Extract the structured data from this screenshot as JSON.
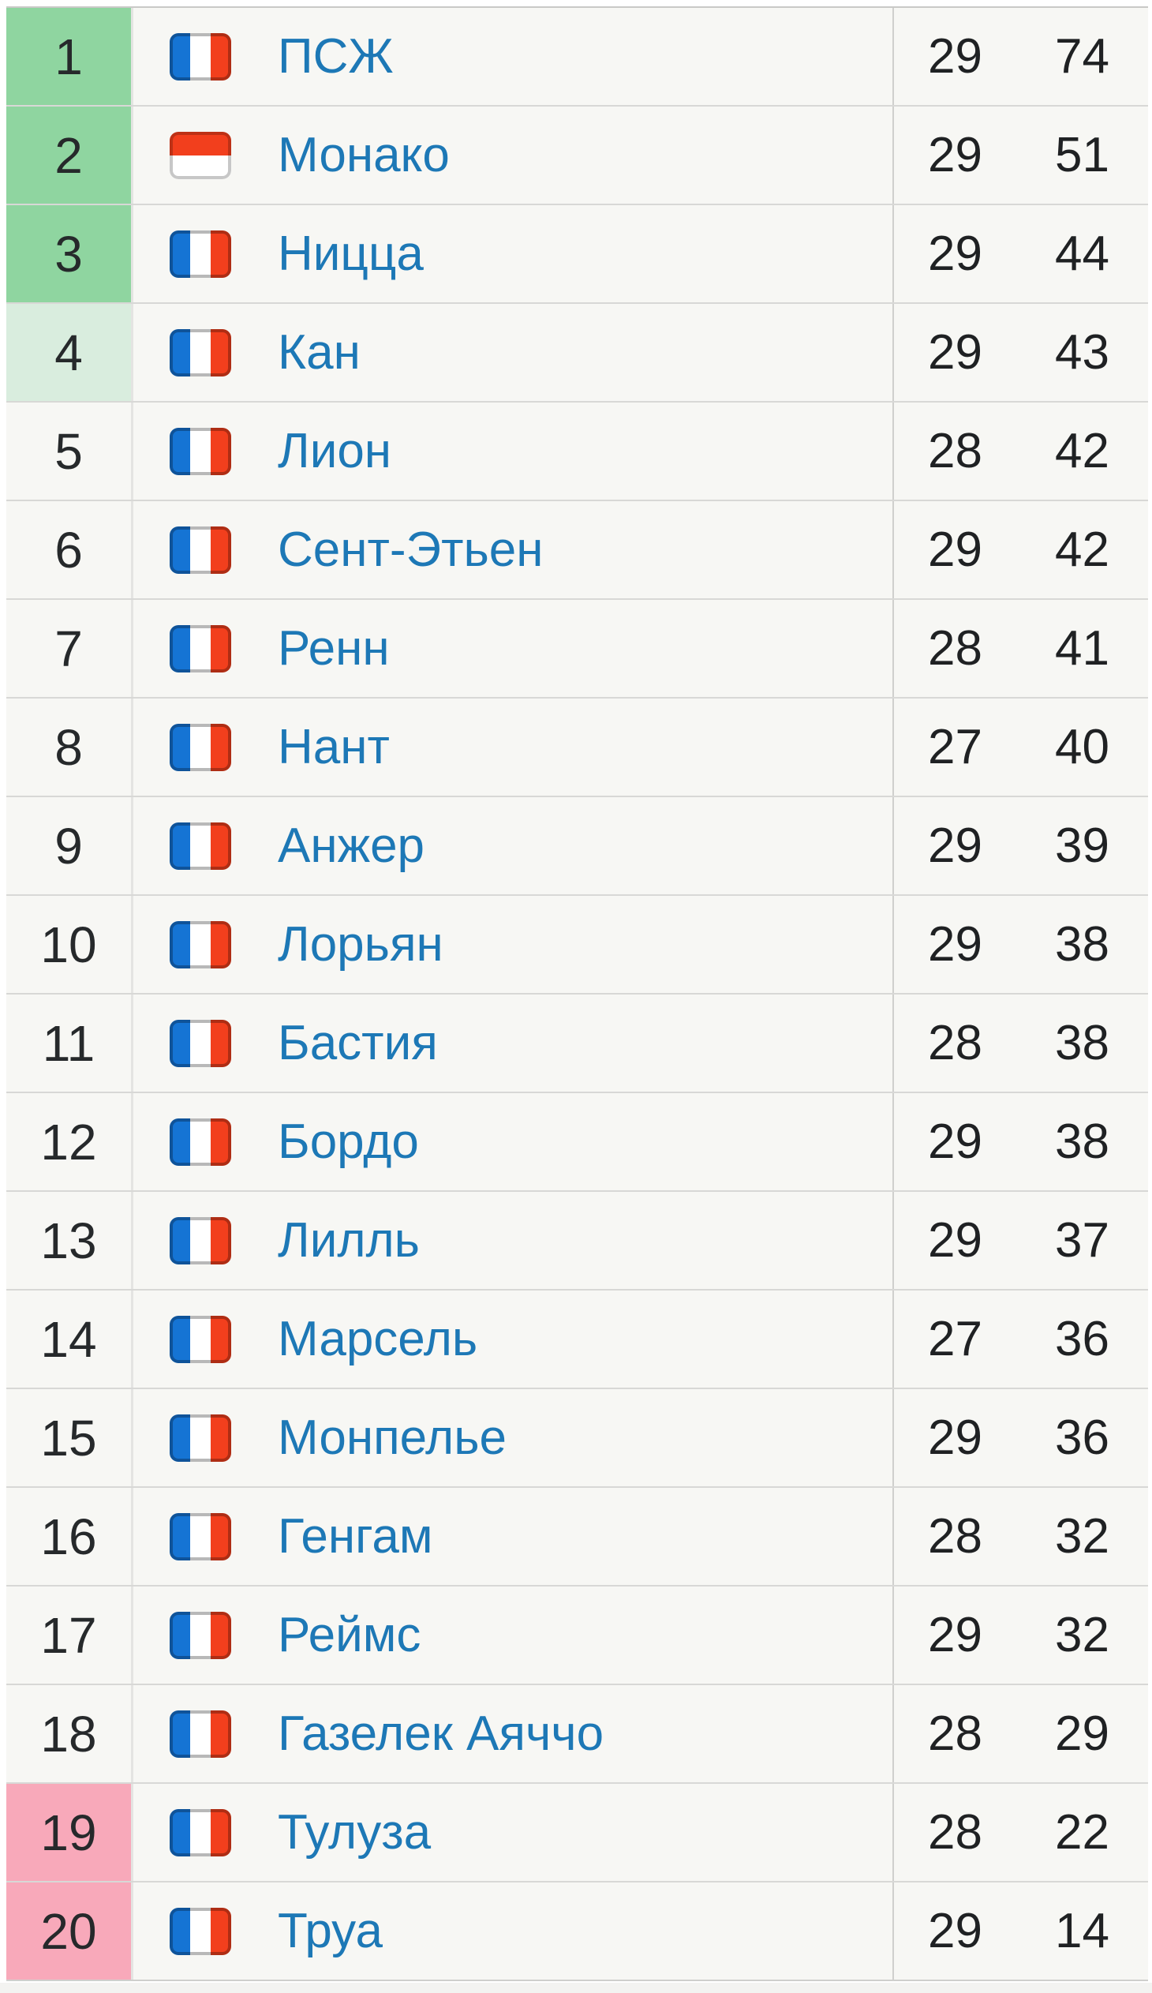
{
  "standings": {
    "colors": {
      "zone-green": "#8fd5a0",
      "zone-light-green": "#d9edde",
      "zone-pink": "#f8a9ba",
      "team-link": "#1d78b6",
      "row-bg": "#f7f7f4",
      "grid-line": "#d8d8d6",
      "flag-blue": "#1574d4",
      "flag-red": "#f23f1d"
    },
    "rows": [
      {
        "pos": "1",
        "team": "ПСЖ",
        "flag": "flag-france-icon",
        "games": "29",
        "points": "74",
        "zone": "green"
      },
      {
        "pos": "2",
        "team": "Монако",
        "flag": "flag-monaco-icon",
        "games": "29",
        "points": "51",
        "zone": "green"
      },
      {
        "pos": "3",
        "team": "Ницца",
        "flag": "flag-france-icon",
        "games": "29",
        "points": "44",
        "zone": "green"
      },
      {
        "pos": "4",
        "team": "Кан",
        "flag": "flag-france-icon",
        "games": "29",
        "points": "43",
        "zone": "light-green"
      },
      {
        "pos": "5",
        "team": "Лион",
        "flag": "flag-france-icon",
        "games": "28",
        "points": "42",
        "zone": "none"
      },
      {
        "pos": "6",
        "team": "Сент-Этьен",
        "flag": "flag-france-icon",
        "games": "29",
        "points": "42",
        "zone": "none"
      },
      {
        "pos": "7",
        "team": "Ренн",
        "flag": "flag-france-icon",
        "games": "28",
        "points": "41",
        "zone": "none"
      },
      {
        "pos": "8",
        "team": "Нант",
        "flag": "flag-france-icon",
        "games": "27",
        "points": "40",
        "zone": "none"
      },
      {
        "pos": "9",
        "team": "Анжер",
        "flag": "flag-france-icon",
        "games": "29",
        "points": "39",
        "zone": "none"
      },
      {
        "pos": "10",
        "team": "Лорьян",
        "flag": "flag-france-icon",
        "games": "29",
        "points": "38",
        "zone": "none"
      },
      {
        "pos": "11",
        "team": "Бастия",
        "flag": "flag-france-icon",
        "games": "28",
        "points": "38",
        "zone": "none"
      },
      {
        "pos": "12",
        "team": "Бордо",
        "flag": "flag-france-icon",
        "games": "29",
        "points": "38",
        "zone": "none"
      },
      {
        "pos": "13",
        "team": "Лилль",
        "flag": "flag-france-icon",
        "games": "29",
        "points": "37",
        "zone": "none"
      },
      {
        "pos": "14",
        "team": "Марсель",
        "flag": "flag-france-icon",
        "games": "27",
        "points": "36",
        "zone": "none"
      },
      {
        "pos": "15",
        "team": "Монпелье",
        "flag": "flag-france-icon",
        "games": "29",
        "points": "36",
        "zone": "none"
      },
      {
        "pos": "16",
        "team": "Генгам",
        "flag": "flag-france-icon",
        "games": "28",
        "points": "32",
        "zone": "none"
      },
      {
        "pos": "17",
        "team": "Реймс",
        "flag": "flag-france-icon",
        "games": "29",
        "points": "32",
        "zone": "none"
      },
      {
        "pos": "18",
        "team": "Газелек Аяччо",
        "flag": "flag-france-icon",
        "games": "28",
        "points": "29",
        "zone": "none"
      },
      {
        "pos": "19",
        "team": "Тулуза",
        "flag": "flag-france-icon",
        "games": "28",
        "points": "22",
        "zone": "pink"
      },
      {
        "pos": "20",
        "team": "Труа",
        "flag": "flag-france-icon",
        "games": "29",
        "points": "14",
        "zone": "pink"
      }
    ]
  }
}
